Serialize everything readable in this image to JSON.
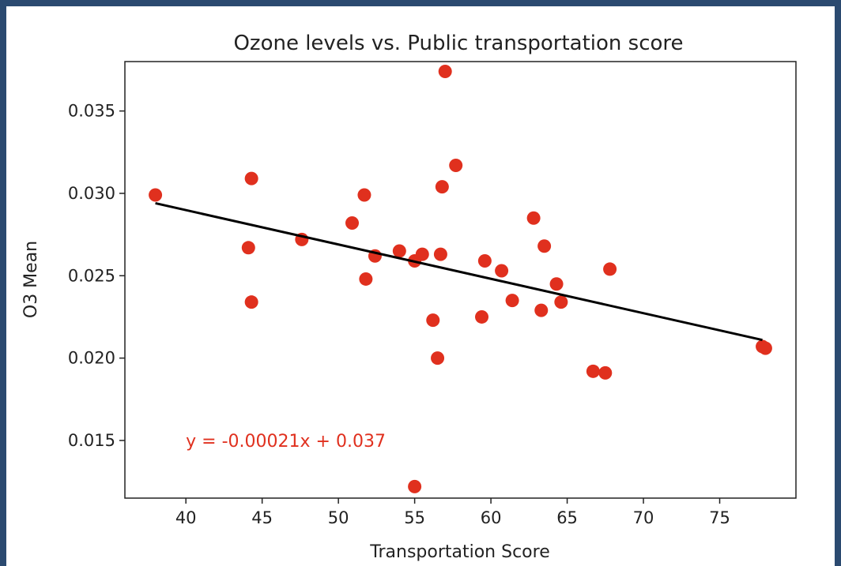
{
  "chart_data": {
    "type": "scatter",
    "title": "Ozone levels vs. Public transportation score",
    "xlabel": "Transportation Score",
    "ylabel": "O3 Mean",
    "xlim": [
      36,
      80
    ],
    "ylim": [
      0.0115,
      0.038
    ],
    "xticks": [
      40,
      45,
      50,
      55,
      60,
      65,
      70,
      75
    ],
    "xtick_labels": [
      "40",
      "45",
      "50",
      "55",
      "60",
      "65",
      "70",
      "75"
    ],
    "yticks": [
      0.015,
      0.02,
      0.025,
      0.03,
      0.035
    ],
    "ytick_labels": [
      "0.015",
      "0.020",
      "0.025",
      "0.030",
      "0.035"
    ],
    "grid": false,
    "marker_color": "#e0301e",
    "line_color": "#000000",
    "points": [
      {
        "x": 38.0,
        "y": 0.0299
      },
      {
        "x": 44.1,
        "y": 0.0267
      },
      {
        "x": 44.3,
        "y": 0.0309
      },
      {
        "x": 44.3,
        "y": 0.0234
      },
      {
        "x": 47.6,
        "y": 0.0272
      },
      {
        "x": 50.9,
        "y": 0.0282
      },
      {
        "x": 51.7,
        "y": 0.0299
      },
      {
        "x": 51.8,
        "y": 0.0248
      },
      {
        "x": 52.4,
        "y": 0.0262
      },
      {
        "x": 54.0,
        "y": 0.0265
      },
      {
        "x": 55.0,
        "y": 0.0259
      },
      {
        "x": 55.5,
        "y": 0.0263
      },
      {
        "x": 55.0,
        "y": 0.0122
      },
      {
        "x": 56.2,
        "y": 0.0223
      },
      {
        "x": 56.5,
        "y": 0.02
      },
      {
        "x": 56.7,
        "y": 0.0263
      },
      {
        "x": 56.8,
        "y": 0.0304
      },
      {
        "x": 57.0,
        "y": 0.0374
      },
      {
        "x": 57.7,
        "y": 0.0317
      },
      {
        "x": 59.4,
        "y": 0.0225
      },
      {
        "x": 59.6,
        "y": 0.0259
      },
      {
        "x": 60.7,
        "y": 0.0253
      },
      {
        "x": 61.4,
        "y": 0.0235
      },
      {
        "x": 62.8,
        "y": 0.0285
      },
      {
        "x": 63.3,
        "y": 0.0229
      },
      {
        "x": 63.5,
        "y": 0.0268
      },
      {
        "x": 64.3,
        "y": 0.0245
      },
      {
        "x": 64.6,
        "y": 0.0234
      },
      {
        "x": 66.7,
        "y": 0.0192
      },
      {
        "x": 67.5,
        "y": 0.0191
      },
      {
        "x": 67.8,
        "y": 0.0254
      },
      {
        "x": 77.8,
        "y": 0.0207
      },
      {
        "x": 78.0,
        "y": 0.0206
      }
    ],
    "regression": {
      "slope": -0.00021,
      "intercept": 0.037,
      "x_start": 38.0,
      "x_end": 77.8,
      "y_start": 0.0294,
      "y_end": 0.0211
    },
    "annotation": {
      "text": "y = -0.00021x + 0.037",
      "x": 40.0,
      "y": 0.015,
      "color": "#e0301e"
    }
  }
}
